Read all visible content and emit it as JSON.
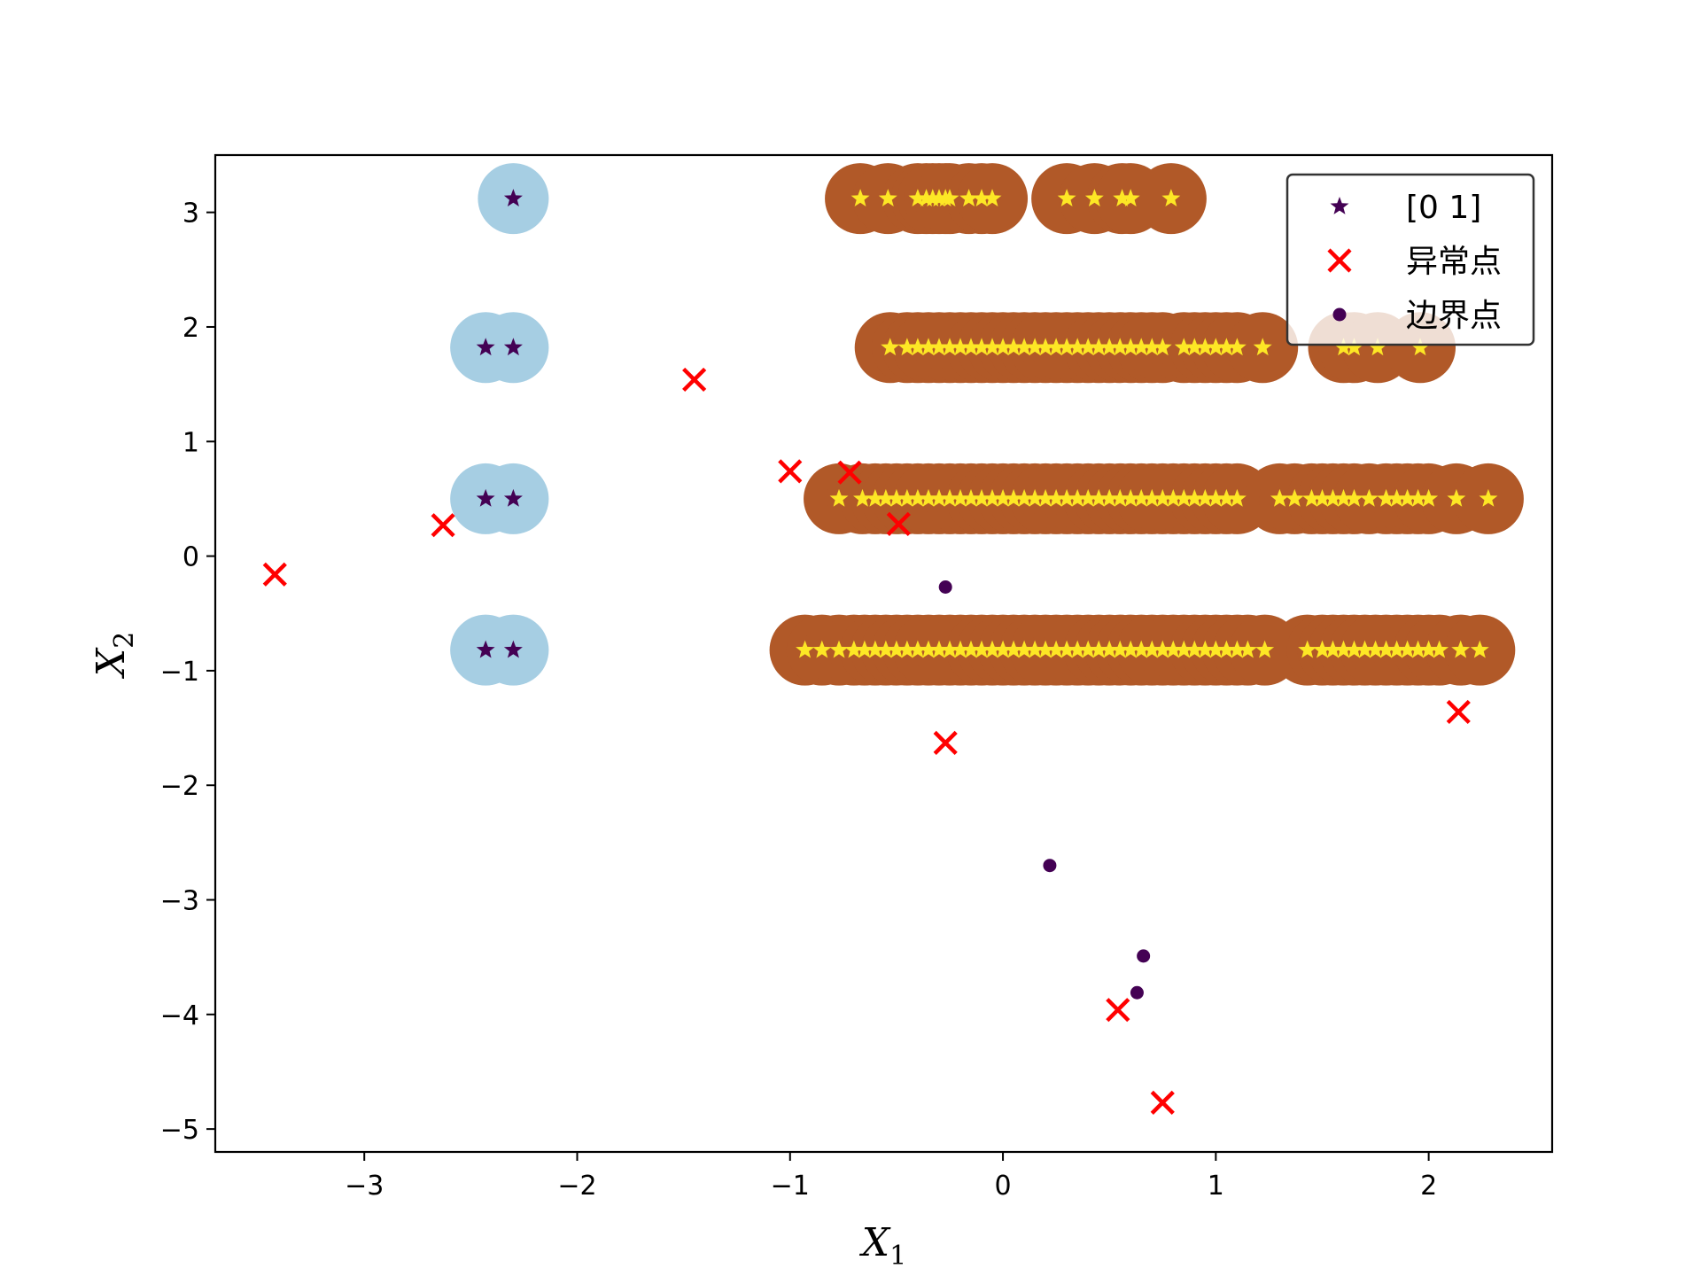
{
  "chart_data": {
    "type": "scatter",
    "title": "",
    "xlabel": "X",
    "xlabel_sub": "1",
    "ylabel": "X",
    "ylabel_sub": "2",
    "xlim": [
      -3.7,
      2.58
    ],
    "ylim": [
      -5.2,
      3.5
    ],
    "x_ticks": [
      -3,
      -2,
      -1,
      0,
      1,
      2
    ],
    "y_ticks": [
      -5,
      -4,
      -3,
      -2,
      -1,
      0,
      1,
      2,
      3
    ],
    "tick_labels_x": [
      "−3",
      "−2",
      "−1",
      "0",
      "1",
      "2"
    ],
    "tick_labels_y": [
      "−5",
      "−4",
      "−3",
      "−2",
      "−1",
      "0",
      "1",
      "2",
      "3"
    ],
    "grid": false,
    "legend_position": "top-right",
    "legend": [
      {
        "label": "[0 1]",
        "marker": "star",
        "color": "#440154"
      },
      {
        "label": "异常点",
        "marker": "x",
        "color": "#ff0000"
      },
      {
        "label": "边界点",
        "marker": "dot",
        "color": "#440154"
      }
    ],
    "colors": {
      "cluster0_halo": "#a6cee3",
      "cluster1_halo": "#b15928",
      "cluster0_core": "#440154",
      "cluster1_core": "#fde725",
      "outlier": "#ff0000",
      "border": "#440154"
    },
    "series": [
      {
        "name": "[0 1]",
        "cluster": 0,
        "points": [
          [
            -2.3,
            3.12
          ],
          [
            -2.43,
            1.82
          ],
          [
            -2.3,
            1.82
          ],
          [
            -2.43,
            0.5
          ],
          [
            -2.3,
            0.5
          ],
          [
            -2.43,
            -0.82
          ],
          [
            -2.3,
            -0.82
          ]
        ]
      },
      {
        "cluster": 1,
        "points": [
          [
            -0.67,
            3.12
          ],
          [
            -0.54,
            3.12
          ],
          [
            -0.4,
            3.12
          ],
          [
            -0.36,
            3.12
          ],
          [
            -0.33,
            3.12
          ],
          [
            -0.3,
            3.12
          ],
          [
            -0.27,
            3.12
          ],
          [
            -0.25,
            3.12
          ],
          [
            -0.16,
            3.12
          ],
          [
            -0.1,
            3.12
          ],
          [
            -0.05,
            3.12
          ],
          [
            0.3,
            3.12
          ],
          [
            0.43,
            3.12
          ],
          [
            0.56,
            3.12
          ],
          [
            0.6,
            3.12
          ],
          [
            0.79,
            3.12
          ],
          [
            -0.53,
            1.82
          ],
          [
            -0.45,
            1.82
          ],
          [
            -0.4,
            1.82
          ],
          [
            -0.35,
            1.82
          ],
          [
            -0.3,
            1.82
          ],
          [
            -0.25,
            1.82
          ],
          [
            -0.2,
            1.82
          ],
          [
            -0.15,
            1.82
          ],
          [
            -0.1,
            1.82
          ],
          [
            -0.05,
            1.82
          ],
          [
            0.0,
            1.82
          ],
          [
            0.05,
            1.82
          ],
          [
            0.1,
            1.82
          ],
          [
            0.15,
            1.82
          ],
          [
            0.2,
            1.82
          ],
          [
            0.25,
            1.82
          ],
          [
            0.3,
            1.82
          ],
          [
            0.35,
            1.82
          ],
          [
            0.4,
            1.82
          ],
          [
            0.45,
            1.82
          ],
          [
            0.5,
            1.82
          ],
          [
            0.55,
            1.82
          ],
          [
            0.6,
            1.82
          ],
          [
            0.65,
            1.82
          ],
          [
            0.7,
            1.82
          ],
          [
            0.75,
            1.82
          ],
          [
            0.85,
            1.82
          ],
          [
            0.9,
            1.82
          ],
          [
            0.95,
            1.82
          ],
          [
            1.0,
            1.82
          ],
          [
            1.05,
            1.82
          ],
          [
            1.1,
            1.82
          ],
          [
            1.22,
            1.82
          ],
          [
            1.6,
            1.82
          ],
          [
            1.65,
            1.82
          ],
          [
            1.76,
            1.82
          ],
          [
            1.96,
            1.82
          ],
          [
            -0.77,
            0.5
          ],
          [
            -0.66,
            0.5
          ],
          [
            -0.6,
            0.5
          ],
          [
            -0.55,
            0.5
          ],
          [
            -0.5,
            0.5
          ],
          [
            -0.45,
            0.5
          ],
          [
            -0.4,
            0.5
          ],
          [
            -0.35,
            0.5
          ],
          [
            -0.3,
            0.5
          ],
          [
            -0.25,
            0.5
          ],
          [
            -0.2,
            0.5
          ],
          [
            -0.15,
            0.5
          ],
          [
            -0.1,
            0.5
          ],
          [
            -0.05,
            0.5
          ],
          [
            0.0,
            0.5
          ],
          [
            0.05,
            0.5
          ],
          [
            0.1,
            0.5
          ],
          [
            0.15,
            0.5
          ],
          [
            0.2,
            0.5
          ],
          [
            0.25,
            0.5
          ],
          [
            0.3,
            0.5
          ],
          [
            0.35,
            0.5
          ],
          [
            0.4,
            0.5
          ],
          [
            0.45,
            0.5
          ],
          [
            0.5,
            0.5
          ],
          [
            0.55,
            0.5
          ],
          [
            0.6,
            0.5
          ],
          [
            0.65,
            0.5
          ],
          [
            0.7,
            0.5
          ],
          [
            0.75,
            0.5
          ],
          [
            0.8,
            0.5
          ],
          [
            0.85,
            0.5
          ],
          [
            0.9,
            0.5
          ],
          [
            0.95,
            0.5
          ],
          [
            1.0,
            0.5
          ],
          [
            1.05,
            0.5
          ],
          [
            1.1,
            0.5
          ],
          [
            1.3,
            0.5
          ],
          [
            1.37,
            0.5
          ],
          [
            1.45,
            0.5
          ],
          [
            1.5,
            0.5
          ],
          [
            1.55,
            0.5
          ],
          [
            1.6,
            0.5
          ],
          [
            1.65,
            0.5
          ],
          [
            1.72,
            0.5
          ],
          [
            1.8,
            0.5
          ],
          [
            1.85,
            0.5
          ],
          [
            1.9,
            0.5
          ],
          [
            1.95,
            0.5
          ],
          [
            2.0,
            0.5
          ],
          [
            2.13,
            0.5
          ],
          [
            2.28,
            0.5
          ],
          [
            -0.93,
            -0.82
          ],
          [
            -0.85,
            -0.82
          ],
          [
            -0.77,
            -0.82
          ],
          [
            -0.7,
            -0.82
          ],
          [
            -0.65,
            -0.82
          ],
          [
            -0.6,
            -0.82
          ],
          [
            -0.55,
            -0.82
          ],
          [
            -0.5,
            -0.82
          ],
          [
            -0.45,
            -0.82
          ],
          [
            -0.4,
            -0.82
          ],
          [
            -0.35,
            -0.82
          ],
          [
            -0.3,
            -0.82
          ],
          [
            -0.25,
            -0.82
          ],
          [
            -0.2,
            -0.82
          ],
          [
            -0.15,
            -0.82
          ],
          [
            -0.1,
            -0.82
          ],
          [
            -0.05,
            -0.82
          ],
          [
            0.0,
            -0.82
          ],
          [
            0.05,
            -0.82
          ],
          [
            0.1,
            -0.82
          ],
          [
            0.15,
            -0.82
          ],
          [
            0.2,
            -0.82
          ],
          [
            0.25,
            -0.82
          ],
          [
            0.3,
            -0.82
          ],
          [
            0.35,
            -0.82
          ],
          [
            0.4,
            -0.82
          ],
          [
            0.45,
            -0.82
          ],
          [
            0.5,
            -0.82
          ],
          [
            0.55,
            -0.82
          ],
          [
            0.6,
            -0.82
          ],
          [
            0.65,
            -0.82
          ],
          [
            0.7,
            -0.82
          ],
          [
            0.75,
            -0.82
          ],
          [
            0.8,
            -0.82
          ],
          [
            0.85,
            -0.82
          ],
          [
            0.9,
            -0.82
          ],
          [
            0.95,
            -0.82
          ],
          [
            1.0,
            -0.82
          ],
          [
            1.05,
            -0.82
          ],
          [
            1.1,
            -0.82
          ],
          [
            1.15,
            -0.82
          ],
          [
            1.23,
            -0.82
          ],
          [
            1.43,
            -0.82
          ],
          [
            1.5,
            -0.82
          ],
          [
            1.55,
            -0.82
          ],
          [
            1.6,
            -0.82
          ],
          [
            1.65,
            -0.82
          ],
          [
            1.7,
            -0.82
          ],
          [
            1.75,
            -0.82
          ],
          [
            1.8,
            -0.82
          ],
          [
            1.85,
            -0.82
          ],
          [
            1.9,
            -0.82
          ],
          [
            1.95,
            -0.82
          ],
          [
            2.0,
            -0.82
          ],
          [
            2.05,
            -0.82
          ],
          [
            2.15,
            -0.82
          ],
          [
            2.24,
            -0.82
          ]
        ]
      },
      {
        "name": "异常点",
        "points": [
          [
            -3.42,
            -0.16
          ],
          [
            -2.63,
            0.27
          ],
          [
            -1.45,
            1.54
          ],
          [
            -1.0,
            0.74
          ],
          [
            -0.72,
            0.73
          ],
          [
            -0.49,
            0.28
          ],
          [
            -0.27,
            -1.63
          ],
          [
            0.54,
            -3.96
          ],
          [
            0.75,
            -4.77
          ],
          [
            2.14,
            -1.36
          ]
        ]
      },
      {
        "name": "边界点",
        "points": [
          [
            -0.27,
            -0.27
          ],
          [
            0.22,
            -2.7
          ],
          [
            0.66,
            -3.49
          ],
          [
            0.63,
            -3.81
          ]
        ]
      }
    ]
  }
}
